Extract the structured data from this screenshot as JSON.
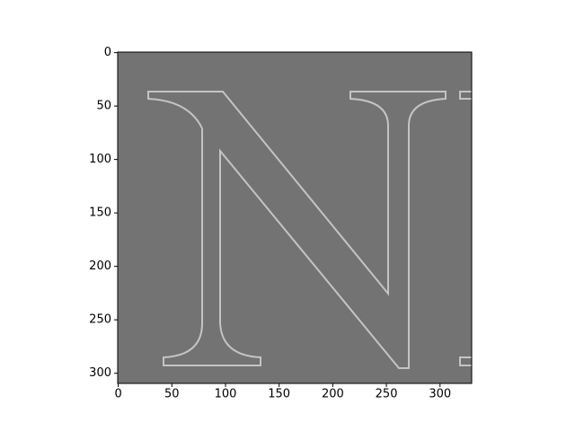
{
  "chart_data": {
    "type": "image",
    "xlim": [
      -0.5,
      329.5
    ],
    "ylim": [
      309.5,
      -0.5
    ],
    "xticks": [
      0,
      50,
      100,
      150,
      200,
      250,
      300
    ],
    "yticks": [
      0,
      50,
      100,
      150,
      200,
      250,
      300
    ]
  }
}
